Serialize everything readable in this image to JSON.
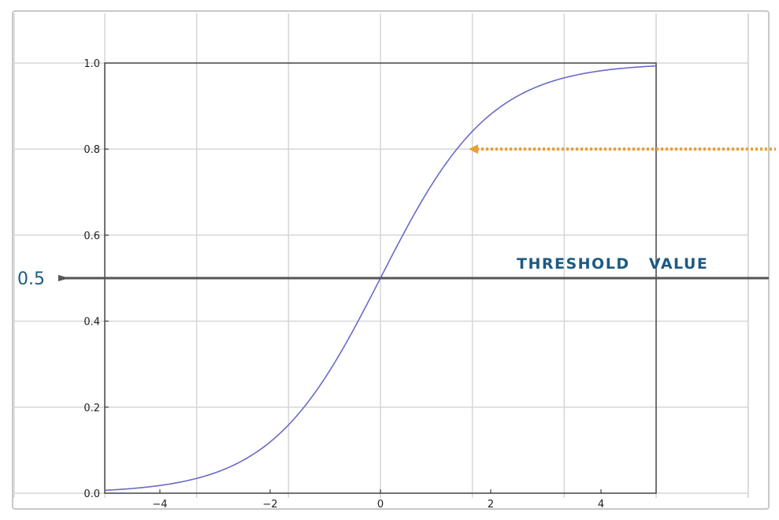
{
  "chart_data": {
    "type": "line",
    "title": "",
    "xlabel": "",
    "ylabel": "",
    "xlim": [
      -5,
      5
    ],
    "ylim": [
      0,
      1
    ],
    "grid": true,
    "x_ticks": [
      -4,
      -2,
      0,
      2,
      4
    ],
    "x_tick_labels": [
      "−4",
      "−2",
      "0",
      "2",
      "4"
    ],
    "y_ticks": [
      0.0,
      0.2,
      0.4,
      0.6,
      0.8,
      1.0
    ],
    "y_tick_labels": [
      "0.0",
      "0.2",
      "0.4",
      "0.6",
      "0.8",
      "1.0"
    ],
    "series": [
      {
        "x": [
          -5,
          -4.5,
          -4,
          -3.5,
          -3,
          -2.5,
          -2,
          -1.5,
          -1,
          -0.5,
          0,
          0.5,
          1,
          1.5,
          2,
          2.5,
          3,
          3.5,
          4,
          4.5,
          5
        ],
        "y": [
          0.0067,
          0.011,
          0.018,
          0.0293,
          0.0474,
          0.0759,
          0.1192,
          0.1824,
          0.2689,
          0.3775,
          0.5,
          0.6225,
          0.7311,
          0.8176,
          0.8808,
          0.9241,
          0.9526,
          0.9707,
          0.982,
          0.989,
          0.9933
        ],
        "color": "#6a6ac8"
      }
    ],
    "annotations": {
      "threshold": {
        "y": 0.5,
        "label": "0.5",
        "text": "THRESHOLD   VALUE",
        "color": "#555555",
        "text_color": "#1e5a82"
      },
      "arrow": {
        "y": 0.8,
        "x_tip": 1.6,
        "color": "#e8a030"
      }
    }
  }
}
